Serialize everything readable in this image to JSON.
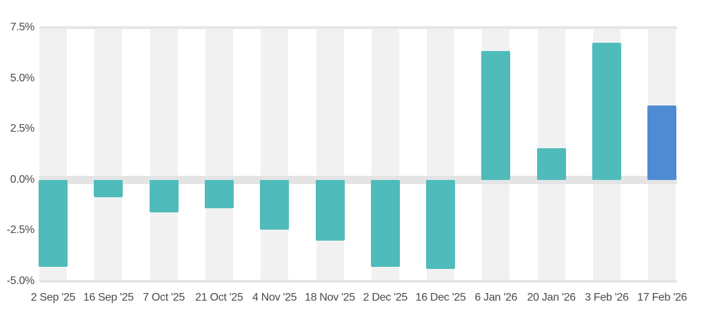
{
  "chart_data": {
    "type": "bar",
    "title": "",
    "xlabel": "",
    "ylabel": "",
    "ylim": [
      -5.0,
      7.5
    ],
    "grid": false,
    "legend": null,
    "y_ticks": [
      "7.5%",
      "5.0%",
      "2.5%",
      "0.0%",
      "-2.5%",
      "-5.0%"
    ],
    "y_tick_values": [
      7.5,
      5.0,
      2.5,
      0.0,
      -2.5,
      -5.0
    ],
    "categories": [
      "2 Sep '25",
      "16 Sep '25",
      "7 Oct '25",
      "21 Oct '25",
      "4 Nov '25",
      "18 Nov '25",
      "2 Dec '25",
      "16 Dec '25",
      "6 Jan '26",
      "20 Jan '26",
      "3 Feb '26",
      "17 Feb '26"
    ],
    "values": [
      -4.3,
      -0.85,
      -1.6,
      -1.4,
      -2.45,
      -3.0,
      -4.3,
      -4.4,
      6.35,
      1.55,
      6.75,
      3.65
    ],
    "unit": "%",
    "colors": {
      "bar": "#4fbbbb",
      "highlight_bar": "#4f8bd3",
      "band": "#f1f1f1",
      "zero_line": "#e4e4e4",
      "axis_text": "#4a4a4a"
    },
    "highlight_index": 11
  }
}
